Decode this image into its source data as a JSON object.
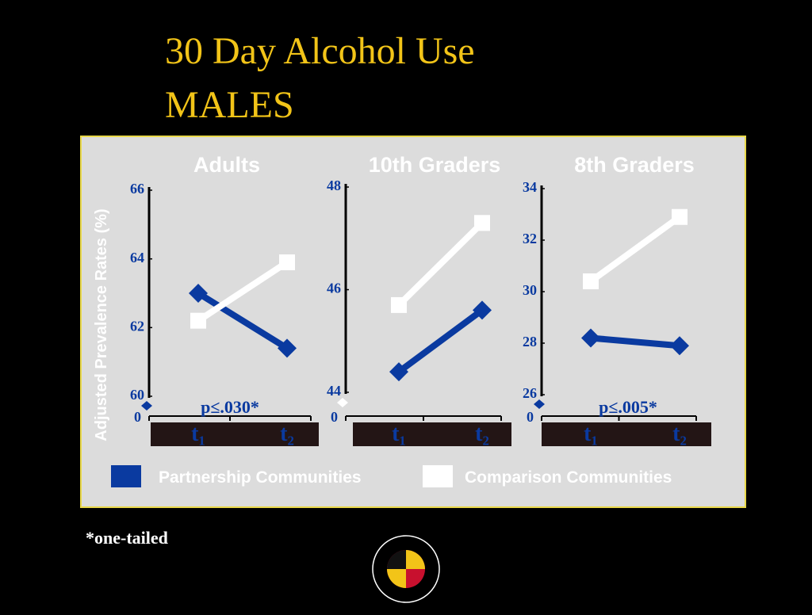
{
  "slide": {
    "title": "30 Day Alcohol Use",
    "subtitle": "MALES",
    "y_label": "Adjusted Prevalence Rates (%)",
    "footnote": "*one-tailed"
  },
  "chart_data": [
    {
      "type": "line",
      "title": "Adults",
      "categories": [
        "t₁",
        "t₂"
      ],
      "series": [
        {
          "name": "Partnership Communities",
          "color": "#0a3aa0",
          "values": [
            63.0,
            61.4
          ]
        },
        {
          "name": "Comparison Communities",
          "color": "#ffffff",
          "values": [
            62.2,
            63.9
          ]
        }
      ],
      "ylim": [
        60,
        66
      ],
      "yticks": [
        60,
        62,
        64,
        66
      ],
      "origin_label": 0,
      "annotation": "p≤.030*"
    },
    {
      "type": "line",
      "title": "10th Graders",
      "categories": [
        "t₁",
        "t₂"
      ],
      "series": [
        {
          "name": "Partnership Communities",
          "color": "#0a3aa0",
          "values": [
            44.4,
            45.6
          ]
        },
        {
          "name": "Comparison Communities",
          "color": "#ffffff",
          "values": [
            45.7,
            47.3
          ]
        }
      ],
      "ylim": [
        44,
        48
      ],
      "yticks": [
        44,
        46,
        48
      ],
      "origin_label": 0
    },
    {
      "type": "line",
      "title": "8th Graders",
      "categories": [
        "t₁",
        "t₂"
      ],
      "series": [
        {
          "name": "Partnership Communities",
          "color": "#0a3aa0",
          "values": [
            28.2,
            27.9
          ]
        },
        {
          "name": "Comparison Communities",
          "color": "#ffffff",
          "values": [
            30.4,
            32.9
          ]
        }
      ],
      "ylim": [
        26,
        34
      ],
      "yticks": [
        26,
        28,
        30,
        32,
        34
      ],
      "origin_label": 0,
      "annotation": "p≤.005*"
    }
  ]
}
